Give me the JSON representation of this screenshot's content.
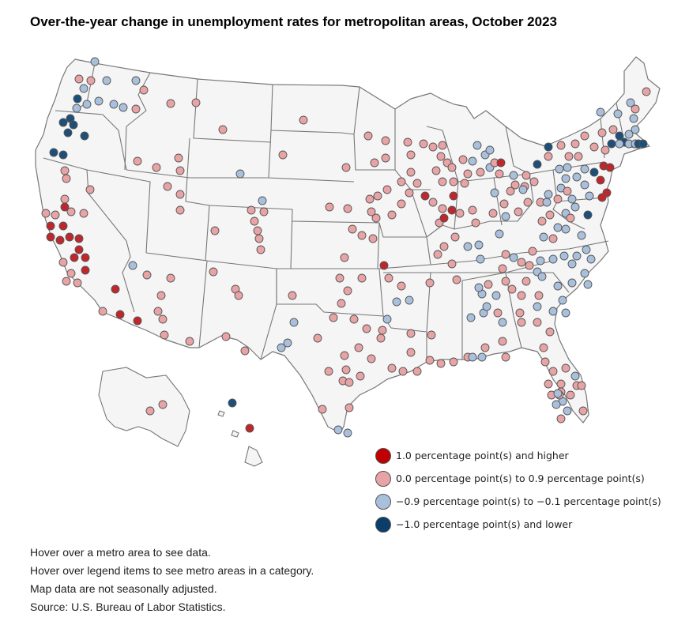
{
  "title": "Over-the-year change in unemployment rates for metropolitan areas, October 2023",
  "colors": {
    "high": "#c0272d",
    "mid_pos": "#e8a3a5",
    "mid_neg": "#a9c0dc",
    "low": "#1d4f7a",
    "land": "#f5f5f5",
    "border": "#777777"
  },
  "legend": [
    {
      "key": "high",
      "label": "1.0 percentage point(s) and higher",
      "color": "#c00000"
    },
    {
      "key": "mid_pos",
      "label": "0.0 percentage point(s) to 0.9 percentage point(s)",
      "color": "#e8a3a5"
    },
    {
      "key": "mid_neg",
      "label": "−0.9 percentage point(s) to −0.1 percentage point(s)",
      "color": "#a9c0dc"
    },
    {
      "key": "low",
      "label": "−1.0 percentage point(s) and lower",
      "color": "#0b3e6b"
    }
  ],
  "notes": [
    "Hover over a metro area to see data.",
    "Hover over legend items to see metro areas in a category.",
    "Map data are not seasonally adjusted.",
    "Source: U.S. Bureau of Labor Statistics."
  ]
}
